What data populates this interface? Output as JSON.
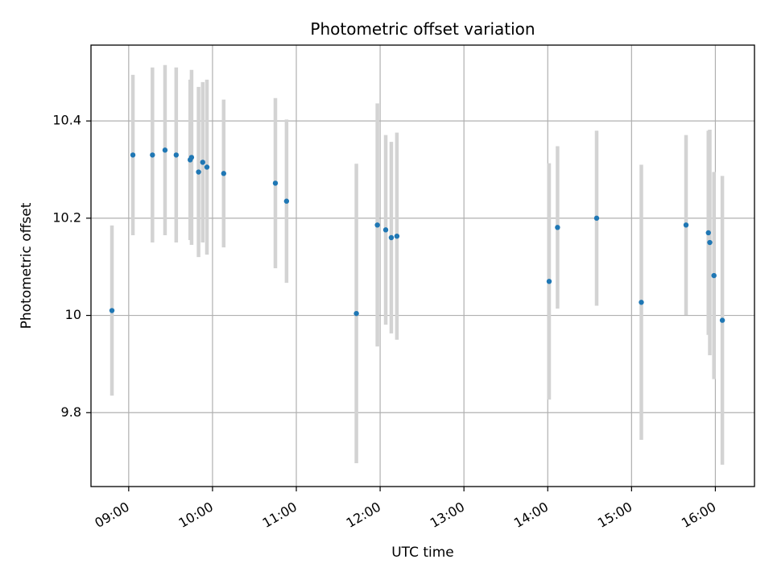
{
  "chart_data": {
    "type": "scatter",
    "title": "Photometric offset variation",
    "xlabel": "UTC time",
    "ylabel": "Photometric offset",
    "xlim": [
      "08:33",
      "16:28"
    ],
    "ylim": [
      9.648,
      10.556
    ],
    "x_ticks": [
      "09:00",
      "10:00",
      "11:00",
      "12:00",
      "13:00",
      "14:00",
      "15:00",
      "16:00"
    ],
    "y_ticks": [
      9.8,
      10.0,
      10.2,
      10.4
    ],
    "grid": true,
    "colors": {
      "point": "#1f77b4",
      "errorbar": "#d3d3d3"
    },
    "points": [
      {
        "x": "08:48",
        "y": 10.01,
        "err": 0.175
      },
      {
        "x": "09:03",
        "y": 10.33,
        "err": 0.165
      },
      {
        "x": "09:17",
        "y": 10.33,
        "err": 0.18
      },
      {
        "x": "09:26",
        "y": 10.34,
        "err": 0.175
      },
      {
        "x": "09:34",
        "y": 10.33,
        "err": 0.18
      },
      {
        "x": "09:44",
        "y": 10.32,
        "err": 0.165
      },
      {
        "x": "09:45",
        "y": 10.325,
        "err": 0.18
      },
      {
        "x": "09:50",
        "y": 10.295,
        "err": 0.175
      },
      {
        "x": "09:53",
        "y": 10.315,
        "err": 0.165
      },
      {
        "x": "09:56",
        "y": 10.305,
        "err": 0.18
      },
      {
        "x": "10:08",
        "y": 10.292,
        "err": 0.152
      },
      {
        "x": "10:45",
        "y": 10.272,
        "err": 0.175
      },
      {
        "x": "10:53",
        "y": 10.235,
        "err": 0.168
      },
      {
        "x": "11:43",
        "y": 10.004,
        "err": 0.308
      },
      {
        "x": "11:58",
        "y": 10.186,
        "err": 0.25
      },
      {
        "x": "12:04",
        "y": 10.176,
        "err": 0.195
      },
      {
        "x": "12:08",
        "y": 10.16,
        "err": 0.197
      },
      {
        "x": "12:12",
        "y": 10.163,
        "err": 0.213
      },
      {
        "x": "14:01",
        "y": 10.07,
        "err": 0.243
      },
      {
        "x": "14:07",
        "y": 10.181,
        "err": 0.167
      },
      {
        "x": "14:35",
        "y": 10.2,
        "err": 0.18
      },
      {
        "x": "15:07",
        "y": 10.027,
        "err": 0.283
      },
      {
        "x": "15:39",
        "y": 10.186,
        "err": 0.185
      },
      {
        "x": "15:55",
        "y": 10.17,
        "err": 0.21
      },
      {
        "x": "15:56",
        "y": 10.15,
        "err": 0.232
      },
      {
        "x": "15:59",
        "y": 10.082,
        "err": 0.213
      },
      {
        "x": "16:05",
        "y": 9.99,
        "err": 0.297
      }
    ]
  }
}
